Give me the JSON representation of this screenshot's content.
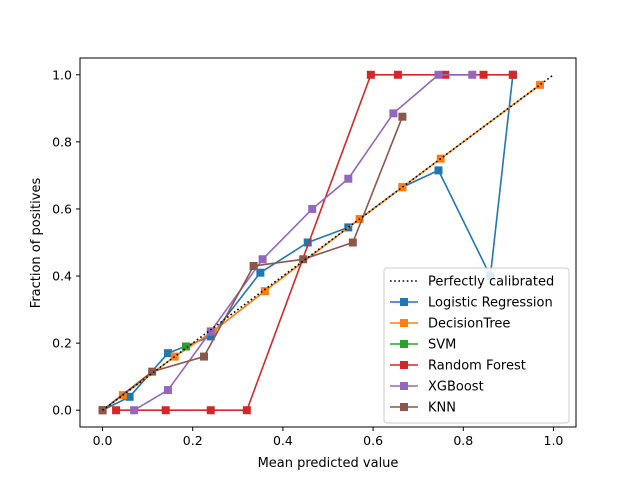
{
  "chart_data": {
    "type": "line",
    "title": "",
    "xlabel": "Mean predicted value",
    "ylabel": "Fraction of positives",
    "xlim": [
      -0.05,
      1.05
    ],
    "ylim": [
      -0.05,
      1.05
    ],
    "xticks": [
      "0.0",
      "0.2",
      "0.4",
      "0.6",
      "0.8",
      "1.0"
    ],
    "yticks": [
      "0.0",
      "0.2",
      "0.4",
      "0.6",
      "0.8",
      "1.0"
    ],
    "grid": false,
    "legend_position": "lower-right",
    "reference": {
      "name": "Perfectly calibrated",
      "color": "#000000",
      "x": [
        0,
        1
      ],
      "y": [
        0,
        1
      ]
    },
    "series": [
      {
        "name": "Logistic Regression",
        "color": "#1f77b4",
        "x": [
          0.0,
          0.06,
          0.145,
          0.24,
          0.35,
          0.455,
          0.545,
          0.665,
          0.745,
          0.86,
          0.91
        ],
        "y": [
          0.0,
          0.04,
          0.17,
          0.22,
          0.41,
          0.5,
          0.545,
          0.665,
          0.715,
          0.4,
          1.0
        ]
      },
      {
        "name": "DecisionTree",
        "color": "#ff7f0e",
        "x": [
          0.0,
          0.045,
          0.16,
          0.245,
          0.36,
          0.57,
          0.665,
          0.75,
          0.97
        ],
        "y": [
          0.0,
          0.045,
          0.16,
          0.235,
          0.355,
          0.57,
          0.665,
          0.75,
          0.97
        ]
      },
      {
        "name": "SVM",
        "color": "#2ca02c",
        "x": [
          0.185
        ],
        "y": [
          0.19
        ]
      },
      {
        "name": "Random Forest",
        "color": "#d62728",
        "x": [
          0.03,
          0.14,
          0.24,
          0.32,
          0.595,
          0.655,
          0.76,
          0.845,
          0.91
        ],
        "y": [
          0.0,
          0.0,
          0.0,
          0.0,
          1.0,
          1.0,
          1.0,
          1.0,
          1.0
        ]
      },
      {
        "name": "XGBoost",
        "color": "#9467bd",
        "x": [
          0.07,
          0.145,
          0.24,
          0.355,
          0.465,
          0.545,
          0.645,
          0.745,
          0.82
        ],
        "y": [
          0.0,
          0.06,
          0.235,
          0.45,
          0.6,
          0.69,
          0.885,
          1.0,
          1.0
        ]
      },
      {
        "name": "KNN",
        "color": "#8c564b",
        "x": [
          0.0,
          0.11,
          0.225,
          0.335,
          0.445,
          0.555,
          0.665
        ],
        "y": [
          0.0,
          0.115,
          0.16,
          0.43,
          0.45,
          0.5,
          0.875
        ]
      }
    ]
  }
}
